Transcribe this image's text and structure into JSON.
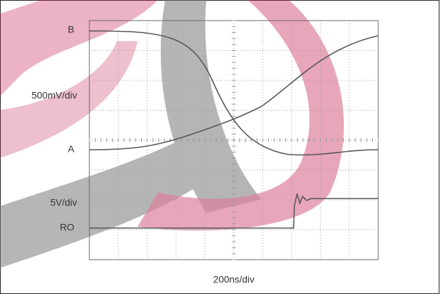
{
  "labels": {
    "trace_b": "B",
    "vertical_scale_top": "500mV/div",
    "trace_a": "A",
    "vertical_scale_bottom": "5V/div",
    "trace_ro": "RO",
    "horizontal_scale": "200ns/div"
  }
}
